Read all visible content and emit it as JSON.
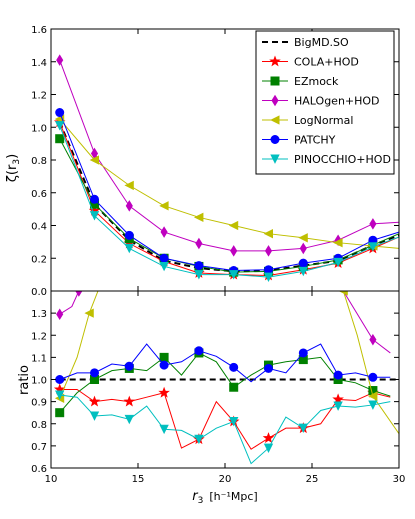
{
  "chart_data": {
    "type": "line",
    "x": [
      10.5,
      12.5,
      14.5,
      16.5,
      18.5,
      20.5,
      22.5,
      24.5,
      26.5,
      28.5,
      30
    ],
    "xlim": [
      10,
      30
    ],
    "xlabel": "r",
    "xlabel_sub": "3",
    "xlabel_unit": "[h⁻¹Mpc]",
    "xticks": [
      "10",
      "15",
      "20",
      "25",
      "30"
    ],
    "legend_position": "top-right",
    "series": [
      {
        "name": "BigMD.SO",
        "color": "#000000",
        "marker": "none",
        "dash": true,
        "x": [
          10.5,
          12.5,
          14.5,
          16.5,
          18.5,
          20.5,
          22.5,
          24.5,
          26.5,
          28.5,
          30
        ],
        "y": [
          1.03,
          0.53,
          0.31,
          0.185,
          0.14,
          0.12,
          0.125,
          0.155,
          0.185,
          0.28,
          0.34
        ],
        "ratio_x": [
          10.5,
          30
        ],
        "ratio_y": [
          1.0,
          1.0
        ]
      },
      {
        "name": "COLA+HOD",
        "color": "#ff0000",
        "marker": "star",
        "x": [
          10.5,
          12.5,
          14.5,
          16.5,
          18.5,
          20.5,
          22.5,
          24.5,
          26.5,
          28.5,
          30
        ],
        "y": [
          1.03,
          0.49,
          0.29,
          0.18,
          0.11,
          0.1,
          0.095,
          0.13,
          0.17,
          0.26,
          0.33
        ],
        "ratio_x": [
          10.5,
          11.5,
          12.5,
          13.5,
          14.5,
          15.5,
          16.5,
          17.5,
          18.5,
          19.5,
          20.5,
          21.5,
          22.5,
          23.5,
          24.5,
          25.5,
          26.5,
          27.5,
          28.5,
          29.5
        ],
        "ratio_y": [
          0.955,
          0.955,
          0.9,
          0.91,
          0.9,
          0.92,
          0.94,
          0.69,
          0.73,
          0.9,
          0.81,
          0.685,
          0.735,
          0.78,
          0.78,
          0.8,
          0.91,
          0.905,
          0.94,
          0.92
        ]
      },
      {
        "name": "EZmock",
        "color": "#008000",
        "marker": "square",
        "x": [
          10.5,
          12.5,
          14.5,
          16.5,
          18.5,
          20.5,
          22.5,
          24.5,
          26.5,
          28.5,
          30
        ],
        "y": [
          0.93,
          0.53,
          0.32,
          0.2,
          0.15,
          0.115,
          0.12,
          0.15,
          0.19,
          0.28,
          0.35
        ],
        "ratio_x": [
          10.5,
          11.5,
          12.5,
          13.5,
          14.5,
          15.5,
          16.5,
          17.5,
          18.5,
          19.5,
          20.5,
          21.5,
          22.5,
          23.5,
          24.5,
          25.5,
          26.5,
          27.5,
          28.5,
          29.5
        ],
        "ratio_y": [
          0.85,
          0.94,
          1.0,
          1.04,
          1.05,
          1.04,
          1.1,
          1.02,
          1.12,
          1.08,
          0.965,
          1.02,
          1.065,
          1.08,
          1.09,
          1.1,
          1.0,
          0.985,
          0.95,
          0.925
        ]
      },
      {
        "name": "HALOgen+HOD",
        "color": "#bf00bf",
        "marker": "diamond",
        "x": [
          10.5,
          12.5,
          14.5,
          16.5,
          18.5,
          20.5,
          22.5,
          24.5,
          26.5,
          28.5,
          30
        ],
        "y": [
          1.41,
          0.84,
          0.52,
          0.36,
          0.29,
          0.245,
          0.245,
          0.26,
          0.31,
          0.41,
          0.42
        ],
        "ratio_x": [
          10.5,
          11.2,
          11.6,
          26.8,
          28.5,
          29.5
        ],
        "ratio_y": [
          1.295,
          1.33,
          1.4,
          1.4,
          1.18,
          1.12
        ]
      },
      {
        "name": "LogNormal",
        "color": "#bfbf00",
        "marker": "triangle-left",
        "x": [
          10.5,
          12.5,
          14.5,
          16.5,
          18.5,
          20.5,
          22.5,
          24.5,
          26.5,
          28.5,
          30
        ],
        "y": [
          1.05,
          0.8,
          0.645,
          0.52,
          0.45,
          0.4,
          0.35,
          0.325,
          0.295,
          0.275,
          0.26
        ],
        "ratio_x": [
          10.5,
          11.5,
          12.2,
          12.7,
          26.8,
          27.6,
          28.5,
          30
        ],
        "ratio_y": [
          0.915,
          1.1,
          1.3,
          1.4,
          1.4,
          1.2,
          0.925,
          0.755
        ]
      },
      {
        "name": "PATCHY",
        "color": "#0000ff",
        "marker": "circle",
        "x": [
          10.5,
          12.5,
          14.5,
          16.5,
          18.5,
          20.5,
          22.5,
          24.5,
          26.5,
          28.5,
          30
        ],
        "y": [
          1.09,
          0.56,
          0.34,
          0.2,
          0.155,
          0.125,
          0.13,
          0.17,
          0.2,
          0.31,
          0.36
        ],
        "ratio_x": [
          10.5,
          11.5,
          12.5,
          13.5,
          14.5,
          15.5,
          16.5,
          17.5,
          18.5,
          19.5,
          20.5,
          21.5,
          22.5,
          23.5,
          24.5,
          25.5,
          26.5,
          27.5,
          28.5,
          29.5
        ],
        "ratio_y": [
          1.0,
          1.03,
          1.03,
          1.07,
          1.06,
          1.16,
          1.065,
          1.08,
          1.13,
          1.105,
          1.055,
          0.99,
          1.05,
          1.03,
          1.12,
          1.16,
          1.02,
          1.03,
          1.01,
          1.01
        ]
      },
      {
        "name": "PINOCCHIO+HOD",
        "color": "#00bfbf",
        "marker": "triangle-down",
        "x": [
          10.5,
          12.5,
          14.5,
          16.5,
          18.5,
          20.5,
          22.5,
          24.5,
          26.5,
          28.5,
          30
        ],
        "y": [
          1.01,
          0.46,
          0.26,
          0.15,
          0.1,
          0.1,
          0.085,
          0.12,
          0.175,
          0.27,
          0.33
        ],
        "ratio_x": [
          10.5,
          11.5,
          12.5,
          13.5,
          14.5,
          15.5,
          16.5,
          17.5,
          18.5,
          19.5,
          20.5,
          21.5,
          22.5,
          23.5,
          24.5,
          25.5,
          26.5,
          27.5,
          28.5,
          29.5
        ],
        "ratio_y": [
          0.93,
          0.92,
          0.835,
          0.84,
          0.82,
          0.88,
          0.775,
          0.77,
          0.73,
          0.78,
          0.81,
          0.62,
          0.69,
          0.83,
          0.78,
          0.86,
          0.88,
          0.875,
          0.885,
          0.9
        ]
      }
    ],
    "top": {
      "ylabel": "ζ(r",
      "ylabel_sub": "3",
      "ylabel_end": ")",
      "ylim": [
        0,
        1.6
      ],
      "yticks": [
        "0.0",
        "0.2",
        "0.4",
        "0.6",
        "0.8",
        "1.0",
        "1.2",
        "1.4",
        "1.6"
      ]
    },
    "bottom": {
      "ylabel": "ratio",
      "ylim": [
        0.6,
        1.4
      ],
      "yticks": [
        "0.6",
        "0.7",
        "0.8",
        "0.9",
        "1.0",
        "1.1",
        "1.2",
        "1.3"
      ]
    }
  }
}
